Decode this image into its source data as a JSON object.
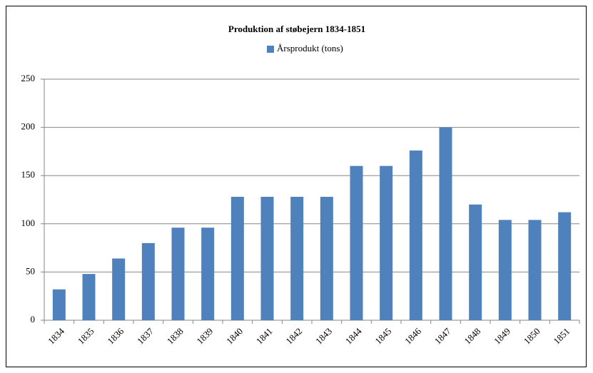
{
  "chart_data": {
    "type": "bar",
    "title": "Produktion af støbejern 1834-1851",
    "categories": [
      "1834",
      "1835",
      "1836",
      "1837",
      "1838",
      "1839",
      "1840",
      "1841",
      "1842",
      "1843",
      "1844",
      "1845",
      "1846",
      "1847",
      "1848",
      "1849",
      "1850",
      "1851"
    ],
    "series": [
      {
        "name": "Årsprodukt (tons)",
        "color": "#4f81bd",
        "values": [
          32,
          48,
          64,
          80,
          96,
          96,
          128,
          128,
          128,
          128,
          160,
          160,
          176,
          200,
          120,
          104,
          104,
          112
        ]
      }
    ],
    "ylim": [
      0,
      250
    ],
    "yticks": [
      0,
      50,
      100,
      150,
      200,
      250
    ],
    "grid": true,
    "legend": "top"
  }
}
